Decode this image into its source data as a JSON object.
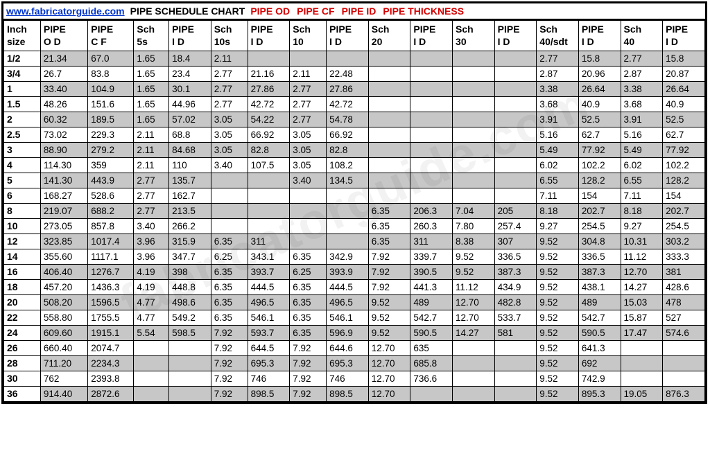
{
  "header": {
    "url": "www.fabricatorguide.com",
    "title_black": "PIPE SCHEDULE CHART",
    "seg1": "PIPE OD",
    "seg2": "PIPE CF",
    "seg3": "PIPE ID",
    "seg4": "PIPE THICKNESS"
  },
  "watermark": "fabricatorguide.com",
  "columns": [
    {
      "l1": "Inch",
      "l2": "size"
    },
    {
      "l1": "PIPE",
      "l2": "O D"
    },
    {
      "l1": "PIPE",
      "l2": "C F"
    },
    {
      "l1": "Sch",
      "l2": "5s"
    },
    {
      "l1": "PIPE",
      "l2": "I D"
    },
    {
      "l1": "Sch",
      "l2": "10s"
    },
    {
      "l1": "PIPE",
      "l2": "I D"
    },
    {
      "l1": "Sch",
      "l2": "10"
    },
    {
      "l1": "PIPE",
      "l2": "I D"
    },
    {
      "l1": "Sch",
      "l2": "20"
    },
    {
      "l1": "PIPE",
      "l2": "I D"
    },
    {
      "l1": "Sch",
      "l2": "30"
    },
    {
      "l1": "PIPE",
      "l2": "I D"
    },
    {
      "l1": "Sch",
      "l2": "40/sdt"
    },
    {
      "l1": "PIPE",
      "l2": "I D"
    },
    {
      "l1": "Sch",
      "l2": "40"
    },
    {
      "l1": "PIPE",
      "l2": "I D"
    }
  ],
  "rows": [
    {
      "shade": true,
      "cells": [
        "1/2",
        "21.34",
        "67.0",
        "1.65",
        "18.4",
        "2.11",
        "",
        "",
        "",
        "",
        "",
        "",
        "",
        "2.77",
        "15.8",
        "2.77",
        "15.8"
      ]
    },
    {
      "shade": false,
      "cells": [
        "3/4",
        "26.7",
        "83.8",
        "1.65",
        "23.4",
        "2.77",
        "21.16",
        "2.11",
        "22.48",
        "",
        "",
        "",
        "",
        "2.87",
        "20.96",
        "2.87",
        "20.87"
      ]
    },
    {
      "shade": true,
      "cells": [
        "1",
        "33.40",
        "104.9",
        "1.65",
        "30.1",
        "2.77",
        "27.86",
        "2.77",
        "27.86",
        "",
        "",
        "",
        "",
        "3.38",
        "26.64",
        "3.38",
        "26.64"
      ]
    },
    {
      "shade": false,
      "cells": [
        "1.5",
        "48.26",
        "151.6",
        "1.65",
        "44.96",
        "2.77",
        "42.72",
        "2.77",
        "42.72",
        "",
        "",
        "",
        "",
        "3.68",
        "40.9",
        "3.68",
        "40.9"
      ]
    },
    {
      "shade": true,
      "cells": [
        "2",
        "60.32",
        "189.5",
        "1.65",
        "57.02",
        "3.05",
        "54.22",
        "2.77",
        "54.78",
        "",
        "",
        "",
        "",
        "3.91",
        "52.5",
        "3.91",
        "52.5"
      ]
    },
    {
      "shade": false,
      "cells": [
        "2.5",
        "73.02",
        "229.3",
        "2.11",
        "68.8",
        "3.05",
        "66.92",
        "3.05",
        "66.92",
        "",
        "",
        "",
        "",
        "5.16",
        "62.7",
        "5.16",
        "62.7"
      ]
    },
    {
      "shade": true,
      "cells": [
        "3",
        "88.90",
        "279.2",
        "2.11",
        "84.68",
        "3.05",
        "82.8",
        "3.05",
        "82.8",
        "",
        "",
        "",
        "",
        "5.49",
        "77.92",
        "5.49",
        "77.92"
      ]
    },
    {
      "shade": false,
      "cells": [
        "4",
        "114.30",
        "359",
        "2.11",
        "110",
        "3.40",
        "107.5",
        "3.05",
        "108.2",
        "",
        "",
        "",
        "",
        "6.02",
        "102.2",
        "6.02",
        "102.2"
      ]
    },
    {
      "shade": true,
      "cells": [
        "5",
        "141.30",
        "443.9",
        "2.77",
        "135.7",
        "",
        "",
        "3.40",
        "134.5",
        "",
        "",
        "",
        "",
        "6.55",
        "128.2",
        "6.55",
        "128.2"
      ]
    },
    {
      "shade": false,
      "cells": [
        "6",
        "168.27",
        "528.6",
        "2.77",
        "162.7",
        "",
        "",
        "",
        "",
        "",
        "",
        "",
        "",
        "7.11",
        "154",
        "7.11",
        "154"
      ]
    },
    {
      "shade": true,
      "cells": [
        "8",
        "219.07",
        "688.2",
        "2.77",
        "213.5",
        "",
        "",
        "",
        "",
        "6.35",
        "206.3",
        "7.04",
        "205",
        "8.18",
        "202.7",
        "8.18",
        "202.7"
      ]
    },
    {
      "shade": false,
      "cells": [
        "10",
        "273.05",
        "857.8",
        "3.40",
        "266.2",
        "",
        "",
        "",
        "",
        "6.35",
        "260.3",
        "7.80",
        "257.4",
        "9.27",
        "254.5",
        "9.27",
        "254.5"
      ]
    },
    {
      "shade": true,
      "cells": [
        "12",
        "323.85",
        "1017.4",
        "3.96",
        "315.9",
        "6.35",
        "311",
        "",
        "",
        "6.35",
        "311",
        "8.38",
        "307",
        "9.52",
        "304.8",
        "10.31",
        "303.2"
      ]
    },
    {
      "shade": false,
      "cells": [
        "14",
        "355.60",
        "1117.1",
        "3.96",
        "347.7",
        "6.25",
        "343.1",
        "6.35",
        "342.9",
        "7.92",
        "339.7",
        "9.52",
        "336.5",
        "9.52",
        "336.5",
        "11.12",
        "333.3"
      ]
    },
    {
      "shade": true,
      "cells": [
        "16",
        "406.40",
        "1276.7",
        "4.19",
        "398",
        "6.35",
        "393.7",
        "6.25",
        "393.9",
        "7.92",
        "390.5",
        "9.52",
        "387.3",
        "9.52",
        "387.3",
        "12.70",
        "381"
      ]
    },
    {
      "shade": false,
      "cells": [
        "18",
        "457.20",
        "1436.3",
        "4.19",
        "448.8",
        "6.35",
        "444.5",
        "6.35",
        "444.5",
        "7.92",
        "441.3",
        "11.12",
        "434.9",
        "9.52",
        "438.1",
        "14.27",
        "428.6"
      ]
    },
    {
      "shade": true,
      "cells": [
        "20",
        "508.20",
        "1596.5",
        "4.77",
        "498.6",
        "6.35",
        "496.5",
        "6.35",
        "496.5",
        "9.52",
        "489",
        "12.70",
        "482.8",
        "9.52",
        "489",
        "15.03",
        "478"
      ]
    },
    {
      "shade": false,
      "cells": [
        "22",
        "558.80",
        "1755.5",
        "4.77",
        "549.2",
        "6.35",
        "546.1",
        "6.35",
        "546.1",
        "9.52",
        "542.7",
        "12.70",
        "533.7",
        "9.52",
        "542.7",
        "15.87",
        "527"
      ]
    },
    {
      "shade": true,
      "cells": [
        "24",
        "609.60",
        "1915.1",
        "5.54",
        "598.5",
        "7.92",
        "593.7",
        "6.35",
        "596.9",
        "9.52",
        "590.5",
        "14.27",
        "581",
        "9.52",
        "590.5",
        "17.47",
        "574.6"
      ]
    },
    {
      "shade": false,
      "cells": [
        "26",
        "660.40",
        "2074.7",
        "",
        "",
        "7.92",
        "644.5",
        "7.92",
        "644.6",
        "12.70",
        "635",
        "",
        "",
        "9.52",
        "641.3",
        "",
        ""
      ]
    },
    {
      "shade": true,
      "cells": [
        "28",
        "711.20",
        "2234.3",
        "",
        "",
        "7.92",
        "695.3",
        "7.92",
        "695.3",
        "12.70",
        "685.8",
        "",
        "",
        "9.52",
        "692",
        "",
        ""
      ]
    },
    {
      "shade": false,
      "cells": [
        "30",
        "762",
        "2393.8",
        "",
        "",
        "7.92",
        "746",
        "7.92",
        "746",
        "12.70",
        "736.6",
        "",
        "",
        "9.52",
        "742.9",
        "",
        ""
      ]
    },
    {
      "shade": true,
      "cells": [
        "36",
        "914.40",
        "2872.6",
        "",
        "",
        "7.92",
        "898.5",
        "7.92",
        "898.5",
        "12.70",
        "",
        "",
        "",
        "9.52",
        "895.3",
        "19.05",
        "876.3"
      ]
    }
  ]
}
